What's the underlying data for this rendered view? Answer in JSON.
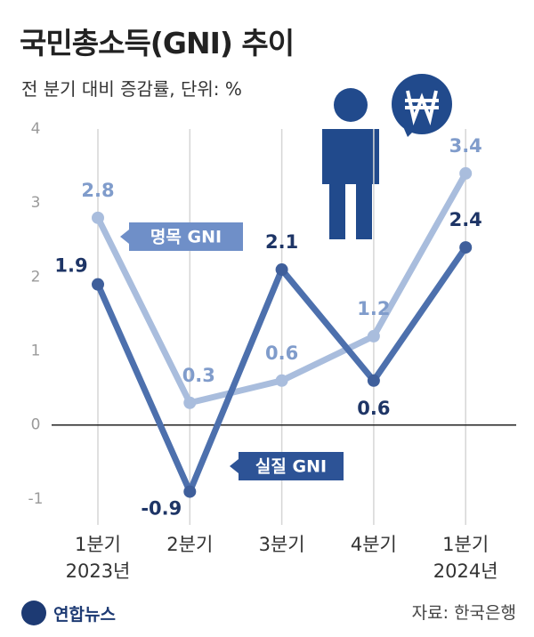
{
  "title": "국민총소득(GNI) 추이",
  "subtitle": "전 분기 대비 증감률, 단위: %",
  "logo": "연합뉴스",
  "source": "자료: 한국은행",
  "chart_data": {
    "type": "line",
    "categories": [
      "1분기\n2023년",
      "2분기",
      "3분기",
      "4분기",
      "1분기\n2024년"
    ],
    "series": [
      {
        "name": "명목 GNI",
        "color": "#a9bddd",
        "values": [
          2.8,
          0.3,
          0.6,
          1.2,
          3.4
        ]
      },
      {
        "name": "실질 GNI",
        "color": "#4d70ad",
        "values": [
          1.9,
          -0.9,
          2.1,
          0.6,
          2.4
        ]
      }
    ],
    "ylim": [
      -1.35,
      4
    ],
    "yticks": [
      -1,
      0,
      1,
      2,
      3,
      4
    ]
  }
}
